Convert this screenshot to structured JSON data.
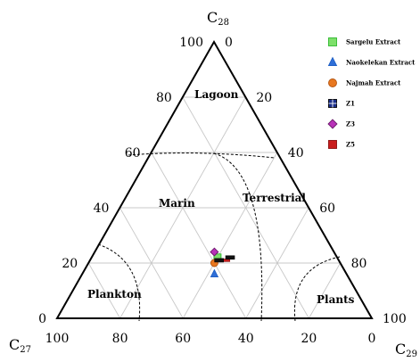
{
  "chart_data": {
    "type": "ternary-scatter",
    "axes": {
      "top": {
        "main": "C",
        "sub": "28"
      },
      "left": {
        "main": "C",
        "sub": "27"
      },
      "right": {
        "main": "C",
        "sub": "29"
      }
    },
    "ticks": {
      "left_side": [
        "0",
        "20",
        "40",
        "60",
        "80",
        "100"
      ],
      "right_side": [
        "0",
        "20",
        "40",
        "60",
        "80",
        "100"
      ],
      "bottom": [
        "100",
        "80",
        "60",
        "40",
        "20",
        "0"
      ]
    },
    "regions": [
      "Lagoon",
      "Marin",
      "Terrestrial",
      "Plankton",
      "Plants"
    ],
    "grid": true,
    "legend_position": "top-right",
    "legend": [
      {
        "label": "Sargelu Extract",
        "marker": "square",
        "color": "#2eb82e",
        "fill": "#7de06a"
      },
      {
        "label": "Naokelekan Extract",
        "marker": "triangle",
        "color": "#1f5fc4",
        "fill": "#2f6fd8"
      },
      {
        "label": "Najmah Extract",
        "marker": "circle",
        "color": "#b35410",
        "fill": "#e8771f"
      },
      {
        "label": "Z1",
        "marker": "cross-square",
        "color": "#000000",
        "fill": "#1a2e8a"
      },
      {
        "label": "Z3",
        "marker": "diamond",
        "color": "#6a1a6a",
        "fill": "#b832b8"
      },
      {
        "label": "Z5",
        "marker": "square",
        "color": "#8a0f0f",
        "fill": "#c91c1c"
      }
    ],
    "points": [
      {
        "series": "Sargelu Extract",
        "C27": 38,
        "C28": 22,
        "C29": 40
      },
      {
        "series": "Naokelekan Extract",
        "C27": 42,
        "C28": 16,
        "C29": 42
      },
      {
        "series": "Najmah Extract",
        "C27": 40,
        "C28": 20,
        "C29": 40
      },
      {
        "series": "Z3",
        "C27": 38,
        "C28": 24,
        "C29": 38
      },
      {
        "series": "Z5",
        "C27": 36,
        "C28": 21,
        "C29": 43
      },
      {
        "series": "Z1",
        "C27": 38,
        "C28": 21,
        "C29": 41
      },
      {
        "series": "Z1",
        "C27": 34,
        "C28": 22,
        "C29": 44
      }
    ]
  }
}
